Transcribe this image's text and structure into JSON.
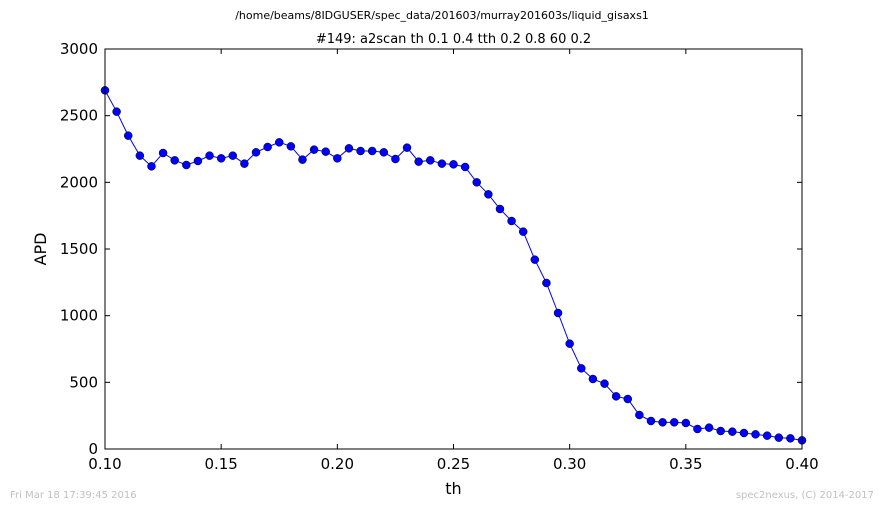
{
  "chart_data": {
    "type": "line",
    "suptitle": "/home/beams/8IDGUSER/spec_data/201603/murray201603s/liquid_gisaxs1",
    "title": "#149: a2scan  th 0.1 0.4  tth 0.2 0.8  60 0.2",
    "xlabel": "th",
    "ylabel": "APD",
    "xlim": [
      0.1,
      0.4
    ],
    "ylim": [
      0,
      3000
    ],
    "x_ticks": [
      0.1,
      0.15,
      0.2,
      0.25,
      0.3,
      0.35,
      0.4
    ],
    "x_tick_labels": [
      "0.10",
      "0.15",
      "0.20",
      "0.25",
      "0.30",
      "0.35",
      "0.40"
    ],
    "y_ticks": [
      0,
      500,
      1000,
      1500,
      2000,
      2500,
      3000
    ],
    "y_tick_labels": [
      "0",
      "500",
      "1000",
      "1500",
      "2000",
      "2500",
      "3000"
    ],
    "grid": false,
    "line_color": "#0000ff",
    "marker": "circle",
    "x": [
      0.1,
      0.105,
      0.11,
      0.115,
      0.12,
      0.125,
      0.13,
      0.135,
      0.14,
      0.145,
      0.15,
      0.155,
      0.16,
      0.165,
      0.17,
      0.175,
      0.18,
      0.185,
      0.19,
      0.195,
      0.2,
      0.205,
      0.21,
      0.215,
      0.22,
      0.225,
      0.23,
      0.235,
      0.24,
      0.245,
      0.25,
      0.255,
      0.26,
      0.265,
      0.27,
      0.275,
      0.28,
      0.285,
      0.29,
      0.295,
      0.3,
      0.305,
      0.31,
      0.315,
      0.32,
      0.325,
      0.33,
      0.335,
      0.34,
      0.345,
      0.35,
      0.355,
      0.36,
      0.365,
      0.37,
      0.375,
      0.38,
      0.385,
      0.39,
      0.395,
      0.4
    ],
    "y": [
      2690,
      2530,
      2350,
      2200,
      2120,
      2220,
      2165,
      2130,
      2160,
      2200,
      2180,
      2200,
      2140,
      2225,
      2265,
      2300,
      2270,
      2170,
      2245,
      2230,
      2180,
      2255,
      2235,
      2235,
      2225,
      2175,
      2260,
      2155,
      2165,
      2140,
      2135,
      2115,
      2000,
      1910,
      1800,
      1710,
      1630,
      1420,
      1245,
      1020,
      790,
      605,
      525,
      490,
      395,
      375,
      255,
      210,
      200,
      200,
      195,
      150,
      160,
      135,
      130,
      120,
      110,
      100,
      85,
      80,
      65
    ]
  },
  "footer": {
    "timestamp": "Fri Mar 18 17:39:45 2016",
    "credit": "spec2nexus, (C) 2014-2017"
  }
}
